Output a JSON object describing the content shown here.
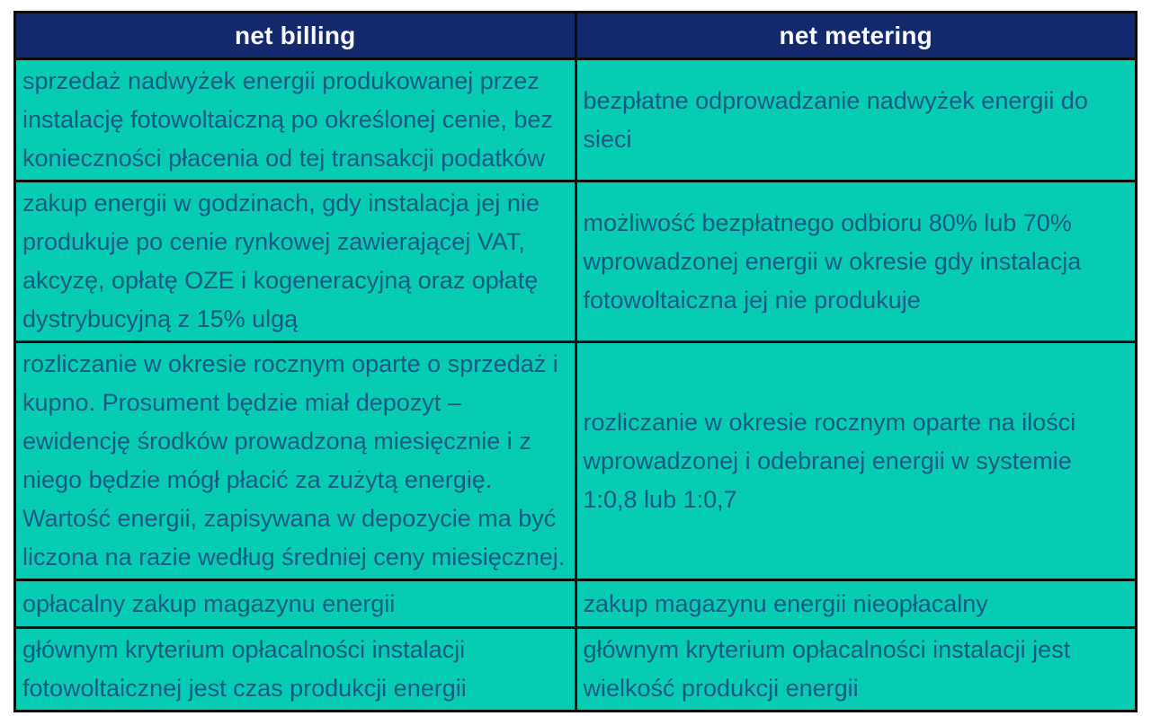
{
  "table": {
    "columns": [
      {
        "header": "net billing"
      },
      {
        "header": "net metering"
      }
    ],
    "rows": [
      {
        "net_billing": "sprzedaż nadwyżek energii produkowanej przez instalację fotowoltaiczną po określonej cenie, bez konieczności płacenia od tej transakcji podatków",
        "net_metering": "bezpłatne odprowadzanie nadwyżek energii do sieci"
      },
      {
        "net_billing": "zakup energii w godzinach, gdy instalacja jej nie produkuje po cenie rynkowej zawierającej VAT, akcyzę, opłatę OZE i kogeneracyjną oraz opłatę dystrybucyjną z 15% ulgą",
        "net_metering": "możliwość bezpłatnego odbioru 80% lub 70% wprowadzonej energii w okresie gdy instalacja fotowoltaiczna jej nie produkuje"
      },
      {
        "net_billing": "rozliczanie w okresie rocznym oparte o sprzedaż i kupno. Prosument będzie miał depozyt – ewidencję środków prowadzoną miesięcznie i z niego będzie mógł płacić za zużytą energię. Wartość energii, zapisywana w depozycie ma być liczona na razie według średniej ceny miesięcznej.",
        "net_metering": "rozliczanie w okresie rocznym oparte na ilości wprowadzonej i odebranej energii w systemie 1:0,8 lub 1:0,7"
      },
      {
        "net_billing": "opłacalny zakup magazynu energii",
        "net_metering": "zakup magazynu energii nieopłacalny"
      },
      {
        "net_billing": "głównym kryterium opłacalności instalacji fotowoltaicznej jest czas produkcji energii",
        "net_metering": "głównym kryterium opłacalności instalacji jest wielkość produkcji energii"
      }
    ]
  },
  "colors": {
    "header_bg": "#14286d",
    "header_text": "#f7f9ff",
    "cell_bg": "#06ccb4",
    "cell_text": "#165a82",
    "border": "#0b0b0b",
    "page_bg": "#ffffff"
  }
}
